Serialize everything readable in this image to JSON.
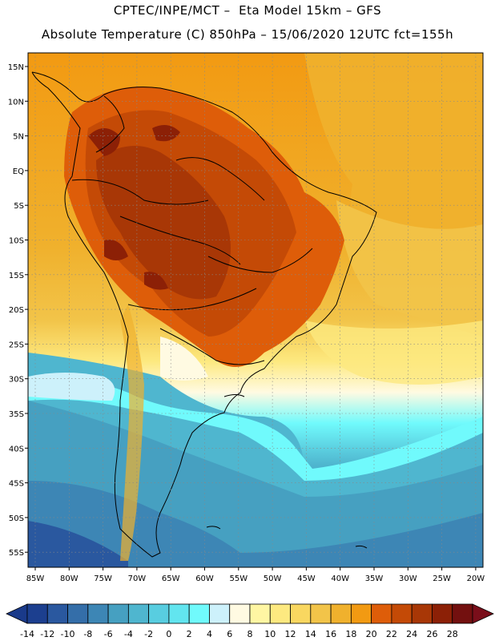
{
  "header": {
    "line1": "CPTEC/INPE/MCT –  Eta Model 15km – GFS",
    "line2": "Absolute Temperature (C) 850hPa – 15/06/2020 12UTC fct=155h"
  },
  "map": {
    "lat_labels": [
      "15N",
      "10N",
      "5N",
      "EQ",
      "5S",
      "10S",
      "15S",
      "20S",
      "25S",
      "30S",
      "35S",
      "40S",
      "45S",
      "50S",
      "55S"
    ],
    "lon_labels": [
      "85W",
      "80W",
      "75W",
      "70W",
      "65W",
      "60W",
      "55W",
      "50W",
      "45W",
      "40W",
      "35W",
      "30W",
      "25W",
      "20W"
    ],
    "grid": true
  },
  "colorbar": {
    "labels": [
      "-14",
      "-12",
      "-10",
      "-8",
      "-6",
      "-4",
      "-2",
      "0",
      "2",
      "4",
      "6",
      "8",
      "10",
      "12",
      "14",
      "16",
      "18",
      "20",
      "22",
      "24",
      "26",
      "28"
    ],
    "colors": [
      "#1c3f8f",
      "#2a589f",
      "#346ea9",
      "#3d86b5",
      "#46a0c1",
      "#4fb6cf",
      "#58cde0",
      "#62e5ef",
      "#70fafc",
      "#cdf1fb",
      "#fffae2",
      "#fff6a3",
      "#fde980",
      "#f9d760",
      "#f2c449",
      "#f0b12d",
      "#f29a12",
      "#de5d09",
      "#c44a06",
      "#a83706",
      "#8c2006",
      "#73100f"
    ]
  }
}
